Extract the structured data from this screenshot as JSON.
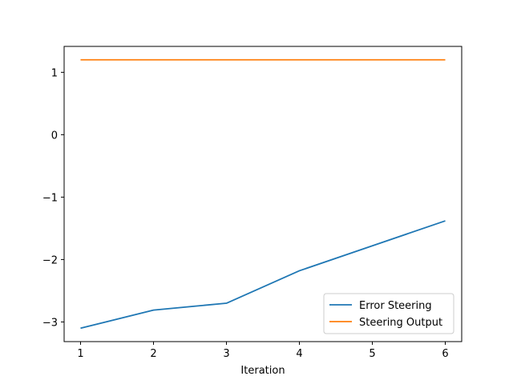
{
  "chart_data": {
    "type": "line",
    "title": "",
    "xlabel": "Iteration",
    "ylabel": "",
    "x": [
      1,
      2,
      3,
      4,
      5,
      6
    ],
    "xticks": [
      "1",
      "2",
      "3",
      "4",
      "5",
      "6"
    ],
    "yticks": [
      {
        "value": -3,
        "label": "−3"
      },
      {
        "value": -2,
        "label": "−2"
      },
      {
        "value": -1,
        "label": "−1"
      },
      {
        "value": 0,
        "label": "0"
      },
      {
        "value": 1,
        "label": "1"
      }
    ],
    "xlim": [
      0.775,
      6.225
    ],
    "ylim": [
      -3.315,
      1.415
    ],
    "grid": false,
    "legend_position": "lower-right",
    "series": [
      {
        "name": "Error Steering",
        "color": "#1f77b4",
        "values": [
          -3.1,
          -2.81,
          -2.7,
          -2.18,
          -1.78,
          -1.38
        ]
      },
      {
        "name": "Steering Output",
        "color": "#ff7f0e",
        "values": [
          1.2,
          1.2,
          1.2,
          1.2,
          1.2,
          1.2
        ]
      }
    ]
  }
}
